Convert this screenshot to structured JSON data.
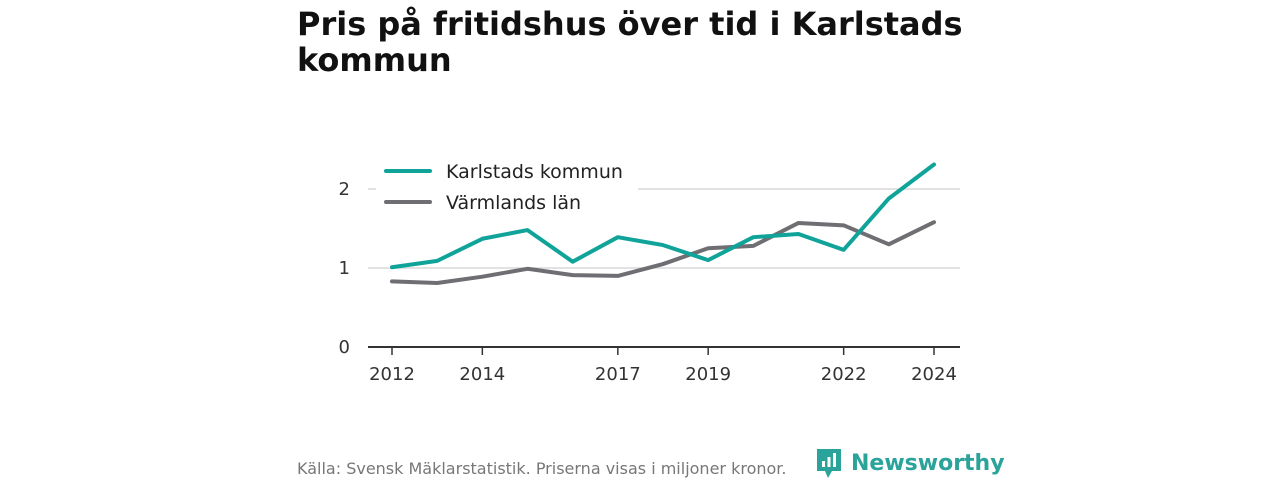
{
  "title": "Pris på fritidshus över tid i Karlstads kommun",
  "footer": {
    "source": "Källa: Svensk Mäklarstatistik. Priserna visas i miljoner kronor.",
    "logo_text": "Newsworthy"
  },
  "colors": {
    "karlstad": "#0fa399",
    "varmland": "#6f6e73",
    "grid": "#d9d9d9",
    "axis": "#333333",
    "brand": "#2aa39a"
  },
  "chart_data": {
    "type": "line",
    "x": [
      2012,
      2013,
      2014,
      2015,
      2016,
      2017,
      2018,
      2019,
      2020,
      2021,
      2022,
      2023,
      2024
    ],
    "xticks": [
      "2012",
      "2014",
      "2017",
      "2019",
      "2022",
      "2024"
    ],
    "yticks": [
      "0",
      "1",
      "2"
    ],
    "ylim": [
      0,
      2.4
    ],
    "grid": true,
    "legend_position": "top-left",
    "series": [
      {
        "name": "Karlstads kommun",
        "color": "#0fa399",
        "values": [
          1.01,
          1.09,
          1.37,
          1.48,
          1.08,
          1.39,
          1.29,
          1.1,
          1.39,
          1.43,
          1.23,
          1.88,
          2.31
        ]
      },
      {
        "name": "Värmlands län",
        "color": "#6f6e73",
        "values": [
          0.83,
          0.81,
          0.89,
          0.99,
          0.91,
          0.9,
          1.05,
          1.25,
          1.28,
          1.57,
          1.54,
          1.3,
          1.58
        ]
      }
    ]
  }
}
